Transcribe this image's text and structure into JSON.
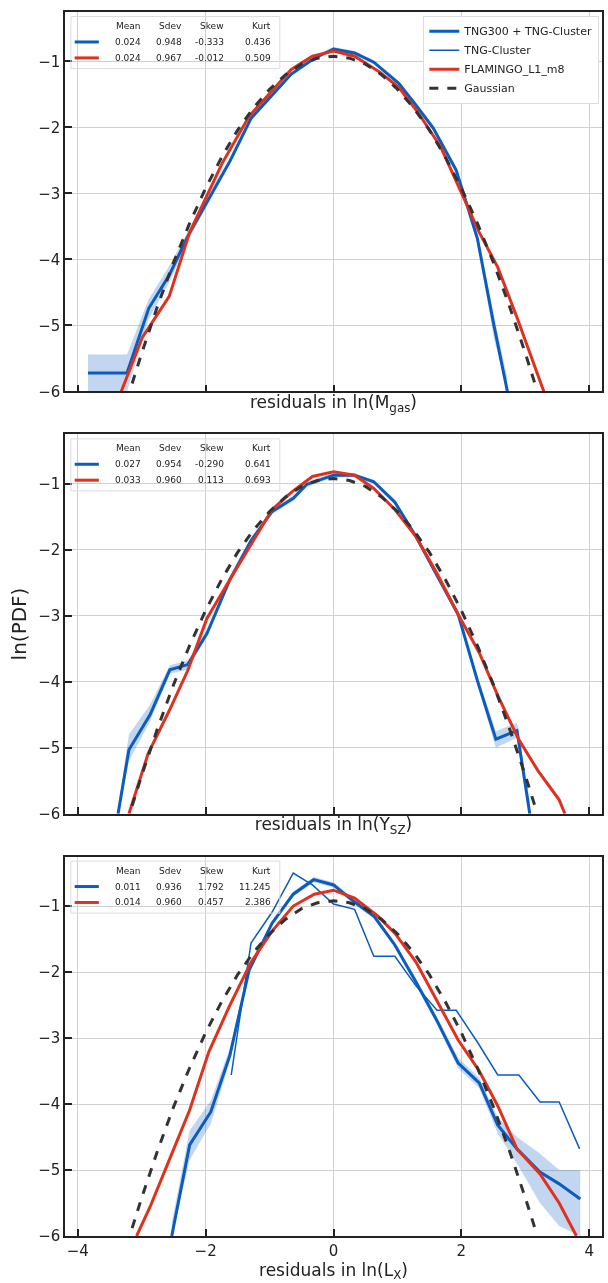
{
  "chart_data": [
    {
      "type": "line",
      "xlabel": "residuals in ln(M$_{gas}$)",
      "xlim": [
        -4.2,
        4.2
      ],
      "ylim": [
        -6,
        -0.25
      ],
      "xticks": [
        {
          "value": -4,
          "label": null
        },
        {
          "value": -2,
          "label": null
        },
        {
          "value": 0,
          "label": null
        },
        {
          "value": 2,
          "label": null
        },
        {
          "value": 4,
          "label": null
        }
      ],
      "yticks": [
        {
          "value": -6,
          "label": "−6"
        },
        {
          "value": -5,
          "label": "−5"
        },
        {
          "value": -4,
          "label": "−4"
        },
        {
          "value": -3,
          "label": "−3"
        },
        {
          "value": -2,
          "label": "−2"
        },
        {
          "value": -1,
          "label": "−1"
        }
      ],
      "grid": true,
      "legend": "top right",
      "tick_labels": "y",
      "annotations": [
        "Mean",
        "Sdev",
        "Skew",
        "Kurt",
        "0.024",
        "0.948",
        "-0.333",
        "0.436",
        "0.024",
        "0.967",
        "-0.012",
        "0.509"
      ],
      "series": [
        {
          "name": "TNG300 + TNG-Cluster",
          "color": "#0b5cbe",
          "x": [
            -3.84,
            -3.23,
            -2.89,
            -2.57,
            -2.28,
            -1.62,
            -1.29,
            -0.66,
            -0.3,
            0,
            0.33,
            0.63,
            1.02,
            1.29,
            1.56,
            1.92,
            2.25,
            2.51,
            2.72
          ],
          "values": [
            -5.72,
            -5.72,
            -4.74,
            -4.24,
            -3.65,
            -2.51,
            -1.86,
            -1.19,
            -0.95,
            -0.81,
            -0.87,
            -1.01,
            -1.33,
            -1.66,
            -2.01,
            -2.65,
            -3.68,
            -5.0,
            -6.0
          ],
          "lower": [
            -6.0,
            -6.0,
            -4.9,
            -4.35,
            -3.72,
            -2.56,
            -1.9,
            -1.22,
            -0.98,
            -0.84,
            -0.9,
            -1.04,
            -1.36,
            -1.7,
            -2.05,
            -2.7,
            -3.75,
            -5.2,
            -6.0
          ],
          "upper": [
            -5.44,
            -5.44,
            -4.6,
            -4.1,
            -3.58,
            -2.46,
            -1.82,
            -1.16,
            -0.92,
            -0.78,
            -0.84,
            -0.98,
            -1.3,
            -1.62,
            -1.97,
            -2.6,
            -3.6,
            -4.85,
            -5.8
          ]
        },
        {
          "name": "TNG-Cluster",
          "color": "#0b5cbe"
        },
        {
          "name": "FLAMINGO_L1_m8",
          "color": "#e0301e",
          "x": [
            -3.32,
            -2.99,
            -2.57,
            -2.25,
            -1.74,
            -1.32,
            -0.66,
            -0.33,
            0,
            0.33,
            0.72,
            1.02,
            1.32,
            1.68,
            2.28,
            2.57,
            2.87,
            3.29
          ],
          "values": [
            -6.0,
            -5.18,
            -4.56,
            -3.59,
            -2.54,
            -1.83,
            -1.12,
            -0.92,
            -0.84,
            -0.92,
            -1.16,
            -1.39,
            -1.77,
            -2.3,
            -3.59,
            -4.12,
            -4.88,
            -6.0
          ]
        },
        {
          "name": "Gaussian",
          "color": "#333333",
          "line_style": "dashed",
          "x": [
            -3.15,
            -3.0,
            -2.75,
            -2.5,
            -2.25,
            -2.0,
            -1.75,
            -1.5,
            -1.25,
            -1.0,
            -0.75,
            -0.5,
            -0.25,
            0,
            0.25,
            0.5,
            0.75,
            1.0,
            1.25,
            1.5,
            1.75,
            2.0,
            2.25,
            2.5,
            2.75,
            3.0,
            3.15
          ],
          "values": [
            -5.88,
            -5.42,
            -4.7,
            -4.04,
            -3.45,
            -2.92,
            -2.45,
            -2.04,
            -1.7,
            -1.42,
            -1.2,
            -1.04,
            -0.95,
            -0.92,
            -0.95,
            -1.04,
            -1.2,
            -1.42,
            -1.7,
            -2.04,
            -2.45,
            -2.92,
            -3.45,
            -4.04,
            -4.7,
            -5.42,
            -5.88
          ]
        }
      ]
    },
    {
      "type": "line",
      "xlabel": "residuals in ln(Y$_{SZ}$)",
      "ylabel": "ln(PDF)",
      "xlim": [
        -4.2,
        4.2
      ],
      "ylim": [
        -6,
        -0.25
      ],
      "xticks": [
        {
          "value": -4,
          "label": null
        },
        {
          "value": -2,
          "label": null
        },
        {
          "value": 0,
          "label": null
        },
        {
          "value": 2,
          "label": null
        },
        {
          "value": 4,
          "label": null
        }
      ],
      "yticks": [
        {
          "value": -6,
          "label": "−6"
        },
        {
          "value": -5,
          "label": "−5"
        },
        {
          "value": -4,
          "label": "−4"
        },
        {
          "value": -3,
          "label": "−3"
        },
        {
          "value": -2,
          "label": "−2"
        },
        {
          "value": -1,
          "label": "−1"
        }
      ],
      "grid": true,
      "tick_labels": "y",
      "annotations": [
        "Mean",
        "Sdev",
        "Skew",
        "Kurt",
        "0.027",
        "0.954",
        "-0.290",
        "0.641",
        "0.033",
        "0.960",
        "0.113",
        "0.693"
      ],
      "series": [
        {
          "color": "#0b5cbe",
          "x": [
            -3.37,
            -3.2,
            -2.87,
            -2.56,
            -2.28,
            -1.98,
            -1.62,
            -1.29,
            -0.96,
            -0.63,
            -0.42,
            0,
            0.33,
            0.63,
            0.96,
            1.29,
            1.62,
            1.95,
            2.25,
            2.54,
            2.87,
            3.07
          ],
          "values": [
            -6.0,
            -5.03,
            -4.5,
            -3.82,
            -3.74,
            -3.27,
            -2.45,
            -1.86,
            -1.42,
            -1.22,
            -1.01,
            -0.87,
            -0.87,
            -0.97,
            -1.28,
            -1.8,
            -2.39,
            -2.98,
            -3.98,
            -4.87,
            -4.74,
            -6.0
          ],
          "lower": [
            -6.0,
            -5.2,
            -4.6,
            -3.88,
            -3.82,
            -3.32,
            -2.5,
            -1.9,
            -1.46,
            -1.26,
            -1.05,
            -0.9,
            -0.9,
            -1.0,
            -1.32,
            -1.84,
            -2.44,
            -3.03,
            -4.05,
            -5.0,
            -4.85,
            -6.0
          ],
          "upper": [
            -5.9,
            -4.8,
            -4.35,
            -3.75,
            -3.68,
            -3.22,
            -2.4,
            -1.82,
            -1.38,
            -1.18,
            -0.97,
            -0.84,
            -0.84,
            -0.94,
            -1.24,
            -1.76,
            -2.34,
            -2.93,
            -3.91,
            -4.75,
            -4.62,
            -5.8
          ]
        },
        {
          "color": "#e0301e",
          "x": [
            -3.2,
            -2.9,
            -2.57,
            -2.28,
            -1.98,
            -1.62,
            -1.29,
            -0.96,
            -0.66,
            -0.33,
            0,
            0.33,
            0.63,
            0.96,
            1.29,
            1.62,
            1.95,
            2.28,
            2.57,
            2.9,
            3.2,
            3.53,
            3.62
          ],
          "values": [
            -6.0,
            -5.09,
            -4.44,
            -3.83,
            -3.04,
            -2.45,
            -1.92,
            -1.39,
            -1.13,
            -0.89,
            -0.82,
            -0.87,
            -1.07,
            -1.39,
            -1.8,
            -2.36,
            -2.98,
            -3.56,
            -4.21,
            -4.88,
            -5.35,
            -5.79,
            -6.0
          ]
        },
        {
          "color": "#333333",
          "line_style": "dashed",
          "x": [
            -3.15,
            -3.0,
            -2.75,
            -2.5,
            -2.25,
            -2.0,
            -1.75,
            -1.5,
            -1.25,
            -1.0,
            -0.75,
            -0.5,
            -0.25,
            0,
            0.25,
            0.5,
            0.75,
            1.0,
            1.25,
            1.5,
            1.75,
            2.0,
            2.25,
            2.5,
            2.75,
            3.0,
            3.15
          ],
          "values": [
            -5.88,
            -5.42,
            -4.7,
            -4.04,
            -3.45,
            -2.92,
            -2.45,
            -2.04,
            -1.7,
            -1.42,
            -1.2,
            -1.04,
            -0.95,
            -0.92,
            -0.95,
            -1.04,
            -1.2,
            -1.42,
            -1.7,
            -2.04,
            -2.45,
            -2.92,
            -3.45,
            -4.04,
            -4.7,
            -5.42,
            -5.88
          ]
        }
      ]
    },
    {
      "type": "line",
      "xlabel": "residuals in ln(L$_{X}$)",
      "xlim": [
        -4.2,
        4.2
      ],
      "ylim": [
        -6,
        -0.25
      ],
      "xticks": [
        {
          "value": -4,
          "label": "−4"
        },
        {
          "value": -2,
          "label": "−2"
        },
        0,
        2,
        4
      ],
      "yticks": [
        {
          "value": -6,
          "label": "−6"
        },
        {
          "value": -5,
          "label": "−5"
        },
        {
          "value": -4,
          "label": "−4"
        },
        {
          "value": -3,
          "label": "−3"
        },
        {
          "value": -2,
          "label": "−2"
        },
        {
          "value": -1,
          "label": "−1"
        }
      ],
      "grid": true,
      "annotations": [
        "Mean",
        "Sdev",
        "Skew",
        "Kurt",
        "0.011",
        "0.936",
        "1.792",
        "11.245",
        "0.014",
        "0.960",
        "0.457",
        "2.386"
      ],
      "series": [
        {
          "color": "#0b5cbe",
          "x": [
            -2.53,
            -2.25,
            -1.92,
            -1.62,
            -1.32,
            -0.96,
            -0.63,
            -0.31,
            0,
            0.33,
            0.63,
            0.96,
            1.29,
            1.62,
            1.95,
            2.28,
            2.57,
            2.87,
            3.23,
            3.53,
            3.86
          ],
          "values": [
            -6.0,
            -4.62,
            -4.12,
            -3.26,
            -1.97,
            -1.26,
            -0.82,
            -0.6,
            -0.68,
            -0.94,
            -1.15,
            -1.59,
            -2.15,
            -2.74,
            -3.38,
            -3.68,
            -4.32,
            -4.68,
            -5.03,
            -5.21,
            -5.44
          ],
          "lower": [
            -6.0,
            -4.85,
            -4.3,
            -3.35,
            -2.02,
            -1.3,
            -0.86,
            -0.64,
            -0.72,
            -0.98,
            -1.19,
            -1.63,
            -2.2,
            -2.8,
            -3.46,
            -3.76,
            -4.45,
            -4.9,
            -5.5,
            -5.85,
            -6.0
          ],
          "upper": [
            -5.8,
            -4.4,
            -3.95,
            -3.15,
            -1.92,
            -1.22,
            -0.78,
            -0.56,
            -0.64,
            -0.9,
            -1.11,
            -1.55,
            -2.1,
            -2.68,
            -3.3,
            -3.6,
            -4.2,
            -4.5,
            -4.75,
            -5.0,
            -5.0
          ]
        },
        {
          "color": "#0b5cbe",
          "x": [
            -1.6,
            -1.29,
            -0.96,
            -0.63,
            -0.33,
            0,
            0.33,
            0.63,
            0.96,
            1.29,
            1.62,
            1.92,
            2.25,
            2.57,
            2.9,
            3.23,
            3.53,
            3.85
          ],
          "values": [
            -3.56,
            -1.56,
            -1.09,
            -0.5,
            -0.68,
            -0.97,
            -1.05,
            -1.76,
            -1.76,
            -2.21,
            -2.58,
            -2.58,
            -3.06,
            -3.56,
            -3.56,
            -3.97,
            -3.97,
            -4.68
          ]
        },
        {
          "color": "#e0301e",
          "x": [
            -3.08,
            -2.87,
            -2.57,
            -2.25,
            -1.95,
            -1.62,
            -1.29,
            -0.96,
            -0.63,
            -0.3,
            0,
            0.33,
            0.69,
            0.96,
            1.29,
            1.62,
            1.95,
            2.28,
            2.57,
            2.87,
            3.23,
            3.53,
            3.8
          ],
          "values": [
            -6.0,
            -5.56,
            -4.85,
            -4.09,
            -3.21,
            -2.5,
            -1.85,
            -1.38,
            -1.0,
            -0.82,
            -0.76,
            -0.88,
            -1.15,
            -1.41,
            -1.85,
            -2.44,
            -3.03,
            -3.5,
            -4.03,
            -4.68,
            -5.06,
            -5.5,
            -6.0
          ]
        },
        {
          "color": "#333333",
          "line_style": "dashed",
          "x": [
            -3.15,
            -3.0,
            -2.75,
            -2.5,
            -2.25,
            -2.0,
            -1.75,
            -1.5,
            -1.25,
            -1.0,
            -0.75,
            -0.5,
            -0.25,
            0,
            0.25,
            0.5,
            0.75,
            1.0,
            1.25,
            1.5,
            1.75,
            2.0,
            2.25,
            2.5,
            2.75,
            3.0,
            3.15
          ],
          "values": [
            -5.88,
            -5.42,
            -4.7,
            -4.04,
            -3.45,
            -2.92,
            -2.45,
            -2.04,
            -1.7,
            -1.42,
            -1.2,
            -1.04,
            -0.95,
            -0.92,
            -0.95,
            -1.04,
            -1.2,
            -1.42,
            -1.7,
            -2.04,
            -2.45,
            -2.92,
            -3.45,
            -4.04,
            -4.7,
            -5.42,
            -5.88
          ]
        }
      ]
    }
  ]
}
